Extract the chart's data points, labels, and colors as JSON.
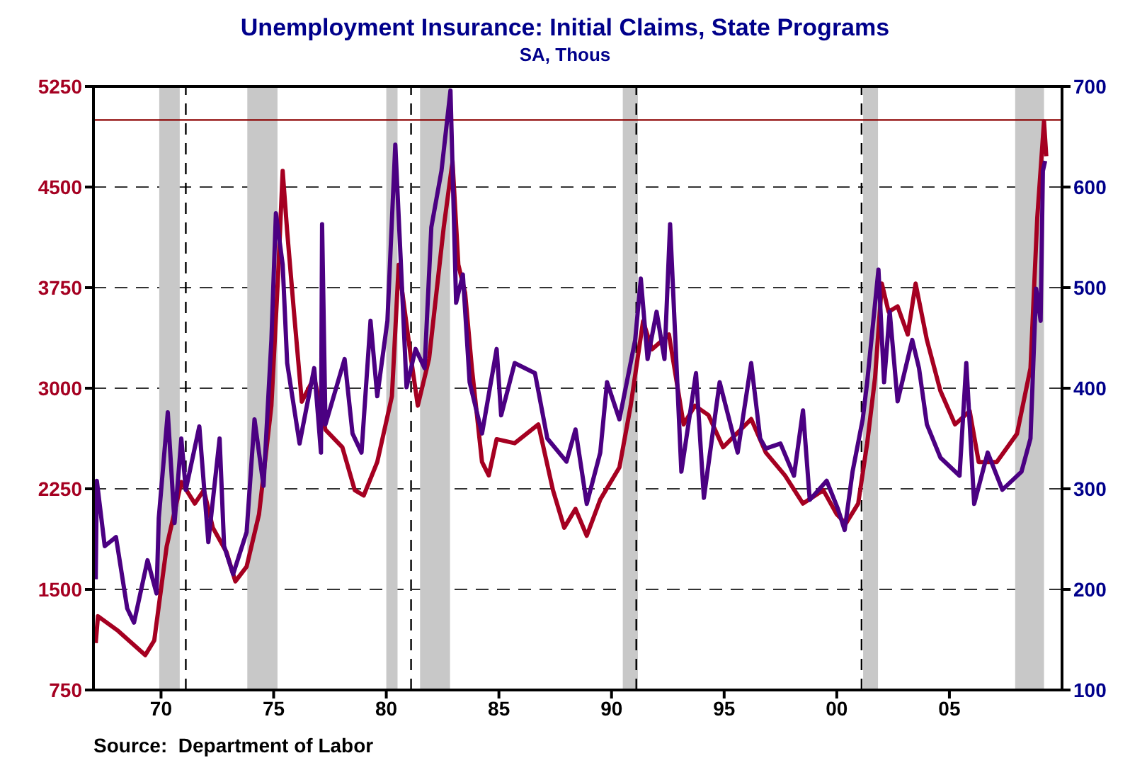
{
  "chart_data": {
    "type": "line",
    "title": "Unemployment Insurance: Initial Claims, State Programs",
    "subtitle": "SA, Thous",
    "annotations": [
      "Source:  Department of Labor"
    ],
    "xlim": [
      1967,
      2010
    ],
    "xticks": [
      {
        "value": 1970,
        "label": "70"
      },
      {
        "value": 1975,
        "label": "75"
      },
      {
        "value": 1980,
        "label": "80"
      },
      {
        "value": 1985,
        "label": "85"
      },
      {
        "value": 1990,
        "label": "90"
      },
      {
        "value": 1995,
        "label": "95"
      },
      {
        "value": 2000,
        "label": "00"
      },
      {
        "value": 2005,
        "label": "05"
      }
    ],
    "ylim": [
      750,
      5250
    ],
    "yticks": [
      750,
      1500,
      2250,
      3000,
      3750,
      4500,
      5250
    ],
    "y2lim": [
      100,
      700
    ],
    "y2ticks": [
      100,
      200,
      300,
      400,
      500,
      600,
      700
    ],
    "grid": "y",
    "line_style": "solid",
    "series": [
      {
        "color": "#a50021",
        "x": [
          1967.1,
          1967.2,
          1968.1,
          1969.3,
          1969.7,
          1970.25,
          1970.9,
          1971.5,
          1971.9,
          1972.3,
          1972.9,
          1973.3,
          1973.8,
          1974.35,
          1974.9,
          1975.2,
          1975.4,
          1975.6,
          1975.9,
          1976.25,
          1976.8,
          1977.3,
          1978.05,
          1978.6,
          1979.0,
          1979.6,
          1980.25,
          1980.55,
          1981.1,
          1981.4,
          1981.9,
          1982.55,
          1982.94,
          1983.2,
          1983.5,
          1983.8,
          1984.25,
          1984.55,
          1984.9,
          1985.7,
          1986.75,
          1987.4,
          1987.9,
          1988.4,
          1988.9,
          1989.5,
          1990.35,
          1990.85,
          1991.4,
          1991.8,
          1992.55,
          1993.2,
          1993.7,
          1994.3,
          1994.95,
          1996.2,
          1996.85,
          1997.7,
          1998.5,
          1999.4,
          2000.0,
          2000.4,
          2000.95,
          2001.35,
          2001.7,
          2002.0,
          2002.3,
          2002.7,
          2003.15,
          2003.5,
          2004.0,
          2004.6,
          2005.25,
          2005.9,
          2006.3,
          2007.1,
          2008.0,
          2008.6,
          2008.9,
          2009.2,
          2009.3
        ],
        "values": [
          1100,
          1300,
          1190,
          1010,
          1120,
          1820,
          2300,
          2140,
          2240,
          1960,
          1780,
          1560,
          1670,
          2060,
          2870,
          3850,
          4620,
          4170,
          3570,
          2900,
          3080,
          2690,
          2560,
          2240,
          2200,
          2450,
          2940,
          3920,
          3220,
          2870,
          3220,
          4200,
          4690,
          3920,
          3710,
          3150,
          2450,
          2350,
          2620,
          2590,
          2730,
          2240,
          1960,
          2100,
          1900,
          2170,
          2410,
          2870,
          3500,
          3290,
          3400,
          2730,
          2870,
          2800,
          2560,
          2770,
          2520,
          2350,
          2140,
          2240,
          2060,
          1990,
          2140,
          2590,
          3080,
          3780,
          3570,
          3610,
          3400,
          3780,
          3360,
          2980,
          2730,
          2830,
          2450,
          2450,
          2660,
          3150,
          4270,
          4990,
          4730
        ]
      },
      {
        "color": "#4b0082",
        "axis": "y2",
        "x": [
          1967.1,
          1967.15,
          1967.5,
          1968.0,
          1968.5,
          1968.8,
          1969.4,
          1969.8,
          1969.9,
          1970.3,
          1970.6,
          1970.9,
          1971.1,
          1971.7,
          1972.1,
          1972.6,
          1972.8,
          1973.2,
          1973.8,
          1974.15,
          1974.55,
          1974.9,
          1975.1,
          1975.4,
          1975.6,
          1976.15,
          1976.8,
          1977.1,
          1977.15,
          1977.3,
          1978.15,
          1978.5,
          1978.9,
          1979.3,
          1979.6,
          1980.05,
          1980.4,
          1980.65,
          1980.9,
          1981.3,
          1981.7,
          1982.0,
          1982.45,
          1982.85,
          1983.1,
          1983.4,
          1983.7,
          1984.25,
          1984.9,
          1985.1,
          1985.7,
          1986.6,
          1987.15,
          1988.0,
          1988.4,
          1988.9,
          1989.5,
          1989.8,
          1990.35,
          1991.05,
          1991.3,
          1991.6,
          1992.0,
          1992.35,
          1992.6,
          1993.1,
          1993.75,
          1994.1,
          1994.8,
          1995.6,
          1996.2,
          1996.6,
          1996.85,
          1997.5,
          1998.1,
          1998.5,
          1998.8,
          1999.55,
          2000.05,
          2000.35,
          2000.7,
          2001.15,
          2001.35,
          2001.85,
          2002.1,
          2002.35,
          2002.7,
          2003.35,
          2003.65,
          2004.0,
          2004.6,
          2005.45,
          2005.75,
          2006.1,
          2006.7,
          2007.35,
          2008.2,
          2008.6,
          2008.85,
          2009.05,
          2009.15,
          2009.25
        ],
        "values": [
          210,
          308,
          243,
          252,
          181,
          167,
          229,
          196,
          271,
          376,
          266,
          350,
          299,
          362,
          247,
          350,
          243,
          215,
          257,
          369,
          303,
          448,
          574,
          523,
          425,
          345,
          420,
          336,
          563,
          364,
          429,
          355,
          336,
          467,
          392,
          467,
          642,
          523,
          401,
          439,
          420,
          560,
          616,
          696,
          485,
          513,
          406,
          355,
          439,
          373,
          425,
          415,
          350,
          327,
          359,
          285,
          336,
          406,
          369,
          448,
          509,
          429,
          476,
          429,
          563,
          317,
          415,
          291,
          406,
          336,
          425,
          350,
          340,
          345,
          313,
          378,
          289,
          308,
          280,
          259,
          317,
          369,
          406,
          518,
          406,
          476,
          387,
          448,
          420,
          364,
          331,
          313,
          425,
          285,
          336,
          299,
          317,
          350,
          499,
          467,
          616,
          626
        ]
      }
    ],
    "bands": [
      {
        "axis": "x",
        "from": 1969.92,
        "to": 1970.83,
        "color": "#c8c8c8"
      },
      {
        "axis": "x",
        "from": 1973.83,
        "to": 1975.17,
        "color": "#c8c8c8"
      },
      {
        "axis": "x",
        "from": 1980.0,
        "to": 1980.5,
        "color": "#c8c8c8"
      },
      {
        "axis": "x",
        "from": 1981.5,
        "to": 1982.83,
        "color": "#c8c8c8"
      },
      {
        "axis": "x",
        "from": 1990.5,
        "to": 1991.17,
        "color": "#c8c8c8"
      },
      {
        "axis": "x",
        "from": 2001.17,
        "to": 2001.83,
        "color": "#c8c8c8"
      },
      {
        "axis": "x",
        "from": 2007.92,
        "to": 2009.2,
        "color": "#c8c8c8"
      }
    ],
    "ref_lines": [
      {
        "axis": "x",
        "value": 1971.1,
        "color": "#000000",
        "line_style": "dashed"
      },
      {
        "axis": "x",
        "value": 1981.1,
        "color": "#000000",
        "line_style": "dashed"
      },
      {
        "axis": "x",
        "value": 1991.1,
        "color": "#000000",
        "line_style": "dashed"
      },
      {
        "axis": "x",
        "value": 2001.1,
        "color": "#000000",
        "line_style": "dashed"
      },
      {
        "axis": "y",
        "value": 5000,
        "color": "#8b0000",
        "line_style": "solid"
      }
    ]
  }
}
